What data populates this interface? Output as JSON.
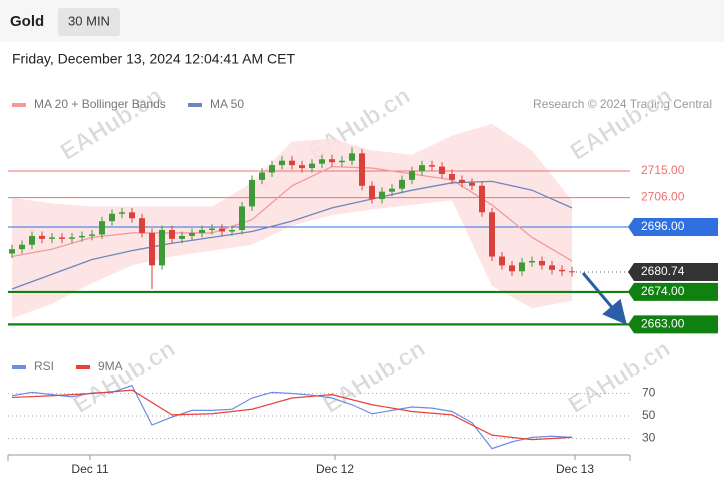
{
  "header": {
    "symbol": "Gold",
    "timeframe": "30 MIN",
    "datetime": "Friday, December 13, 2024 12:04:41 AM CET",
    "credit": "Research © 2024 Trading Central",
    "watermark": "EAHub.cn"
  },
  "chart_data": [
    {
      "type": "candlestick",
      "x": [
        0,
        1,
        2,
        3,
        4,
        5,
        6,
        7,
        8,
        9,
        10,
        11,
        12,
        13,
        14,
        15,
        16,
        17,
        18,
        19,
        20,
        21,
        22,
        23,
        24,
        25,
        26,
        27,
        28,
        29,
        30,
        31,
        32,
        33,
        34,
        35,
        36,
        37,
        38,
        39,
        40,
        41,
        42,
        43,
        44,
        45,
        46,
        47,
        48,
        49,
        50,
        51,
        52,
        53,
        54,
        55,
        56
      ],
      "open": [
        2687,
        2688.5,
        2690,
        2693,
        2692,
        2692.5,
        2692,
        2692.5,
        2693,
        2693.5,
        2698,
        2700.5,
        2701,
        2699,
        2694,
        2683,
        2695,
        2692,
        2693,
        2694,
        2695,
        2695.5,
        2694.5,
        2695,
        2703,
        2712,
        2714.5,
        2717,
        2718.5,
        2717,
        2716,
        2717.5,
        2719,
        2718,
        2718.5,
        2721,
        2710,
        2705.5,
        2708,
        2709,
        2712,
        2715,
        2717,
        2716.5,
        2714,
        2712,
        2711,
        2710,
        2701,
        2686,
        2683,
        2681,
        2684,
        2684.5,
        2683,
        2681.5,
        2681
      ],
      "high": [
        2690,
        2691.5,
        2694.5,
        2694.5,
        2694,
        2694,
        2694,
        2694.5,
        2695,
        2699.5,
        2702,
        2702.5,
        2702.5,
        2700.5,
        2695.5,
        2696.5,
        2696.5,
        2694.5,
        2695.5,
        2696.5,
        2697,
        2697,
        2696.5,
        2704.5,
        2713.5,
        2716,
        2718.5,
        2720,
        2720,
        2718.5,
        2719,
        2720.5,
        2720.5,
        2720,
        2723,
        2722.5,
        2711.5,
        2709.5,
        2710.5,
        2713.5,
        2716.5,
        2718.5,
        2718.5,
        2718,
        2715.5,
        2713.5,
        2712.5,
        2711.5,
        2702.5,
        2687.5,
        2684.5,
        2685.5,
        2686,
        2686,
        2684.5,
        2683,
        2682.5
      ],
      "low": [
        2685.5,
        2687,
        2688.5,
        2690.5,
        2690.5,
        2690.5,
        2690.5,
        2691,
        2691.5,
        2692,
        2696.5,
        2699,
        2697.5,
        2692.5,
        2675,
        2681.5,
        2690.5,
        2690.5,
        2691.5,
        2692.5,
        2693.5,
        2693,
        2693,
        2693.5,
        2701.5,
        2710.5,
        2713,
        2715.5,
        2715.5,
        2714.5,
        2714.5,
        2716,
        2716.5,
        2716.5,
        2717,
        2708.5,
        2704,
        2704,
        2706.5,
        2707.5,
        2710.5,
        2713.5,
        2715,
        2712.5,
        2710.5,
        2709.5,
        2708.5,
        2699.5,
        2684.5,
        2681.5,
        2679.5,
        2679.5,
        2682.5,
        2681.5,
        2680,
        2679.5,
        2679.2
      ],
      "close": [
        2688.5,
        2690,
        2693,
        2692,
        2692.5,
        2692,
        2692.5,
        2693,
        2693.5,
        2698,
        2700.5,
        2701,
        2699,
        2694,
        2683,
        2695,
        2692,
        2693,
        2694,
        2695,
        2695.5,
        2694.5,
        2695,
        2703,
        2712,
        2714.5,
        2717,
        2718.5,
        2717,
        2716,
        2717.5,
        2719,
        2718,
        2718.5,
        2721,
        2710,
        2705.5,
        2708,
        2709,
        2712,
        2715,
        2717,
        2716.5,
        2714,
        2712,
        2711,
        2710,
        2701,
        2686,
        2683,
        2681,
        2684,
        2684.5,
        2683,
        2681.5,
        2681,
        2680.74
      ],
      "up_color": "#3f9b3a",
      "down_color": "#d9423c",
      "xlim": [
        -0.4,
        61.8
      ],
      "ylim": [
        2656,
        2734
      ],
      "overlays": [
        {
          "name": "MA 20 + Bollinger Bands",
          "color": "#f29a9a",
          "band_color": "#fde0e2",
          "x": [
            0,
            4,
            8,
            12,
            16,
            20,
            24,
            28,
            32,
            36,
            40,
            44,
            48,
            52,
            56
          ],
          "values": [
            2686,
            2688.5,
            2692.5,
            2694,
            2694,
            2694,
            2698.5,
            2710,
            2716.5,
            2716,
            2714,
            2712,
            2703.5,
            2692.5,
            2684.5
          ],
          "upper": [
            2706,
            2704,
            2703,
            2703,
            2703,
            2703,
            2711,
            2725,
            2726,
            2722,
            2720.5,
            2727,
            2731,
            2722,
            2705
          ],
          "lower": [
            2665,
            2670,
            2677,
            2683,
            2686,
            2688,
            2690,
            2696.5,
            2700,
            2702,
            2703.5,
            2705,
            2676,
            2668.5,
            2671
          ]
        },
        {
          "name": "MA 50",
          "color": "#6f86bd",
          "x": [
            0,
            4,
            8,
            12,
            16,
            20,
            24,
            28,
            32,
            36,
            40,
            44,
            48,
            52,
            56
          ],
          "values": [
            2675,
            2680,
            2685,
            2688,
            2690.5,
            2692.5,
            2694.5,
            2698,
            2702.5,
            2705.5,
            2708.5,
            2711,
            2711.5,
            2708.5,
            2702.5
          ]
        }
      ],
      "levels": [
        {
          "value": 2715,
          "label": "2715.00",
          "color": "#f07070",
          "box": false,
          "line": "solid"
        },
        {
          "value": 2706,
          "label": "2706.00",
          "color": "#f07070",
          "box": false,
          "line": "solid"
        },
        {
          "value": 2696,
          "label": "2696.00",
          "color": "#2f6fe0",
          "box": true,
          "line": "solid"
        },
        {
          "value": 2680.74,
          "label": "2680.74",
          "color": "#333333",
          "box": true,
          "line": "dotted"
        },
        {
          "value": 2674,
          "label": "2674.00",
          "color": "#108010",
          "box": true,
          "line": "thick"
        },
        {
          "value": 2663,
          "label": "2663.00",
          "color": "#108010",
          "box": true,
          "line": "thick"
        }
      ]
    },
    {
      "type": "line",
      "xlim": [
        -0.4,
        61.8
      ],
      "ylim": [
        18,
        82
      ],
      "yticks": [
        30,
        50,
        70
      ],
      "grid": true,
      "xticks": [
        {
          "value": 7.8,
          "label": "Dec 11"
        },
        {
          "value": 32.3,
          "label": "Dec 12"
        },
        {
          "value": 56.3,
          "label": "Dec 13"
        }
      ],
      "series": [
        {
          "name": "RSI",
          "color": "#6a8ee6",
          "x": [
            0,
            2,
            4,
            6,
            8,
            10,
            12,
            14,
            16,
            18,
            20,
            22,
            24,
            26,
            28,
            30,
            32,
            34,
            36,
            38,
            40,
            42,
            44,
            46,
            48,
            50,
            52,
            54,
            56
          ],
          "values": [
            68,
            71,
            69,
            67,
            70.5,
            71,
            77,
            42,
            49,
            55,
            55,
            56,
            66,
            71,
            70,
            68.5,
            66,
            60,
            52,
            55,
            58,
            57,
            54,
            44,
            21,
            27,
            31,
            32,
            31
          ]
        },
        {
          "name": "9MA",
          "color": "#e8413a",
          "x": [
            0,
            4,
            8,
            12,
            16,
            20,
            24,
            28,
            32,
            36,
            40,
            44,
            48,
            52,
            56
          ],
          "values": [
            66.5,
            68,
            70,
            73,
            51,
            52,
            56,
            66,
            69,
            60,
            54,
            51,
            33,
            29,
            31
          ]
        }
      ]
    }
  ]
}
